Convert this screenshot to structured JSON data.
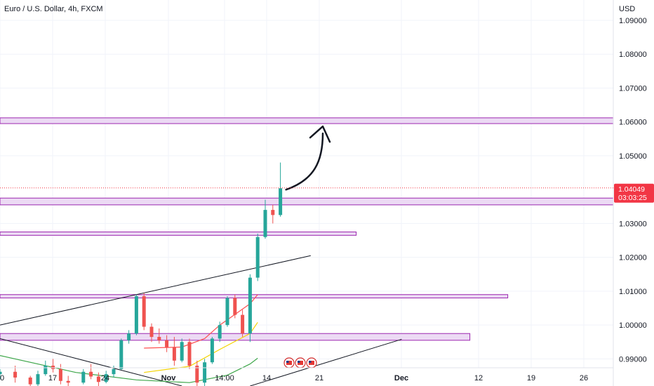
{
  "chart_data": {
    "type": "candlestick",
    "title": "Euro / U.S. Dollar, 4h, FXCM",
    "currency": "USD",
    "y_axis": {
      "range": [
        0.982,
        1.096
      ],
      "ticks": [
        "1.09000",
        "1.08000",
        "1.07000",
        "1.06000",
        "1.05000",
        "1.03000",
        "1.02000",
        "1.01000",
        "1.00000",
        "0.99000"
      ]
    },
    "x_axis": {
      "ticks": [
        "0",
        "17",
        "24",
        "Nov",
        "14:00",
        "14",
        "21",
        "Dec",
        "12",
        "19",
        "26"
      ]
    },
    "last_price": {
      "value": "1.04049",
      "countdown": "03:03:25",
      "color": "#f23645"
    },
    "colors": {
      "up": "#26a69a",
      "down": "#ef5350",
      "zone_fill": "#e9d3f2",
      "zone_border": "#9c27b0"
    },
    "zones": [
      {
        "low": 1.0595,
        "high": 1.0612,
        "extends": "full"
      },
      {
        "low": 1.0355,
        "high": 1.0375,
        "extends": "full"
      },
      {
        "low": 1.0265,
        "high": 1.0275,
        "end": "2024-11-26"
      },
      {
        "low": 1.008,
        "high": 1.009,
        "end": "2024-12-16"
      },
      {
        "low": 0.9955,
        "high": 0.9975,
        "end": "2024-12-11"
      }
    ],
    "trendlines": [
      {
        "from": [
          "2024-10-10",
          1.0
        ],
        "to": [
          "2024-11-20",
          1.0205
        ]
      },
      {
        "from": [
          "2024-10-10",
          0.996
        ],
        "to": [
          "2024-11-03",
          0.982
        ]
      },
      {
        "from": [
          "2024-11-12",
          0.982
        ],
        "to": [
          "2024-12-02",
          0.9958
        ]
      }
    ],
    "projection": {
      "from": [
        "2024-11-16",
        1.0404
      ],
      "to": [
        "2024-11-19",
        1.0595
      ]
    },
    "event_icons": 3,
    "moving_averages": [
      {
        "color": "#ff5252",
        "points": [
          [
            "2024-10-29",
            0.9932
          ],
          [
            "2024-11-03",
            0.9935
          ],
          [
            "2024-11-06",
            0.996
          ],
          [
            "2024-11-08",
            1.0
          ],
          [
            "2024-11-12",
            1.0063
          ],
          [
            "2024-11-13",
            1.009
          ]
        ]
      },
      {
        "color": "#f5d300",
        "points": [
          [
            "2024-10-29",
            0.986
          ],
          [
            "2024-11-04",
            0.9878
          ],
          [
            "2024-11-08",
            0.9928
          ],
          [
            "2024-11-12",
            0.9975
          ],
          [
            "2024-11-13",
            1.0008
          ]
        ]
      },
      {
        "color": "#3ea64a",
        "points": [
          [
            "2024-10-10",
            0.991
          ],
          [
            "2024-10-20",
            0.986
          ],
          [
            "2024-10-28",
            0.9838
          ],
          [
            "2024-11-04",
            0.983
          ],
          [
            "2024-11-09",
            0.9852
          ],
          [
            "2024-11-12",
            0.9885
          ],
          [
            "2024-11-13",
            0.9902
          ]
        ]
      }
    ],
    "candles": [
      [
        "2024-10-10",
        0.9855,
        0.987,
        0.984,
        0.9862
      ],
      [
        "2024-10-12",
        0.9862,
        0.988,
        0.983,
        0.9845
      ],
      [
        "2024-10-14",
        0.9845,
        0.985,
        0.981,
        0.9825
      ],
      [
        "2024-10-15",
        0.9825,
        0.9865,
        0.982,
        0.9855
      ],
      [
        "2024-10-16",
        0.9855,
        0.9895,
        0.985,
        0.988
      ],
      [
        "2024-10-17",
        0.988,
        0.99,
        0.986,
        0.987
      ],
      [
        "2024-10-18",
        0.987,
        0.9885,
        0.9825,
        0.9835
      ],
      [
        "2024-10-19",
        0.9835,
        0.985,
        0.982,
        0.983
      ],
      [
        "2024-10-21",
        0.983,
        0.987,
        0.9825,
        0.9862
      ],
      [
        "2024-10-22",
        0.9862,
        0.9885,
        0.984,
        0.9848
      ],
      [
        "2024-10-23",
        0.9848,
        0.986,
        0.982,
        0.9832
      ],
      [
        "2024-10-24",
        0.9832,
        0.9865,
        0.9828,
        0.9855
      ],
      [
        "2024-10-25",
        0.9855,
        0.988,
        0.9845,
        0.987
      ],
      [
        "2024-10-26",
        0.987,
        0.996,
        0.9868,
        0.9955
      ],
      [
        "2024-10-27",
        0.9955,
        0.9985,
        0.9945,
        0.9975
      ],
      [
        "2024-10-28",
        0.9975,
        1.009,
        0.997,
        1.0085
      ],
      [
        "2024-10-29",
        1.0085,
        1.0095,
        0.9985,
        0.9995
      ],
      [
        "2024-10-30",
        0.9995,
        1.0005,
        0.995,
        0.9965
      ],
      [
        "2024-10-31",
        0.9965,
        0.999,
        0.9945,
        0.9955
      ],
      [
        "2024-11-01",
        0.9955,
        0.997,
        0.992,
        0.9935
      ],
      [
        "2024-11-02",
        0.9935,
        0.9965,
        0.988,
        0.9895
      ],
      [
        "2024-11-03",
        0.9895,
        0.996,
        0.989,
        0.995
      ],
      [
        "2024-11-04",
        0.995,
        0.996,
        0.987,
        0.988
      ],
      [
        "2024-11-05",
        0.988,
        0.9895,
        0.982,
        0.983
      ],
      [
        "2024-11-06",
        0.983,
        0.99,
        0.9815,
        0.989
      ],
      [
        "2024-11-07",
        0.989,
        0.9965,
        0.9885,
        0.996
      ],
      [
        "2024-11-08",
        0.996,
        1.001,
        0.995,
        1.0
      ],
      [
        "2024-11-09",
        1.0,
        1.0085,
        0.9995,
        1.008
      ],
      [
        "2024-11-10",
        1.008,
        1.009,
        1.002,
        1.003
      ],
      [
        "2024-11-11",
        1.003,
        1.0045,
        0.9965,
        0.9975
      ],
      [
        "2024-11-12",
        0.9975,
        1.015,
        0.995,
        1.014
      ],
      [
        "2024-11-13",
        1.014,
        1.027,
        1.013,
        1.026
      ],
      [
        "2024-11-14",
        1.026,
        1.037,
        1.0255,
        1.034
      ],
      [
        "2024-11-15",
        1.034,
        1.0355,
        1.03,
        1.0325
      ],
      [
        "2024-11-16",
        1.0325,
        1.048,
        1.032,
        1.0404
      ]
    ]
  }
}
